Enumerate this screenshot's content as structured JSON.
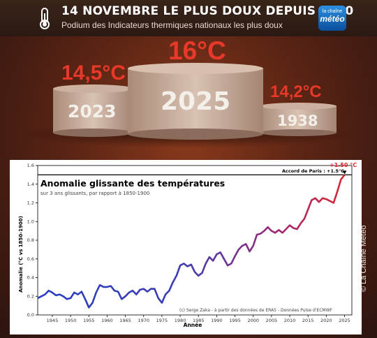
{
  "header": {
    "title": "14 NOVEMBRE LE PLUS DOUX DEPUIS 1930",
    "subtitle": "Podium des Indicateurs thermiques nationaux les plus doux",
    "logo_top": "la chaîne",
    "logo_main": "météo"
  },
  "podium": {
    "first": {
      "value": "16°C",
      "year": "2025"
    },
    "second": {
      "value": "14,5°C",
      "year": "2023"
    },
    "third": {
      "value": "14,2°C",
      "year": "1938"
    }
  },
  "copyright": "© La Chaîne Météo",
  "colors": {
    "accent": "#e8382a",
    "series_start": "#2a3fbf",
    "series_end": "#e0262a"
  },
  "chart_data": {
    "type": "line",
    "title": "Anomalie glissante des températures",
    "subtitle": "sur 3 ans glissants, par rapport à 1850-1900",
    "xlabel": "Année",
    "ylabel": "Anomalie (°C vs 1850-1900)",
    "xlim": [
      1941,
      2027
    ],
    "ylim": [
      0,
      1.6
    ],
    "x_ticks": [
      1945,
      1950,
      1955,
      1960,
      1965,
      1970,
      1975,
      1980,
      1985,
      1990,
      1995,
      2000,
      2005,
      2010,
      2015,
      2020,
      2025
    ],
    "y_ticks": [
      0.0,
      0.2,
      0.4,
      0.6,
      0.8,
      1.0,
      1.2,
      1.4,
      1.6
    ],
    "grid": false,
    "reference_line": {
      "y": 1.5,
      "label": "Accord de Paris : +1.5°C"
    },
    "annotation": "+1.50 °C",
    "credit": "(c) Serge Zaka - à partir des données de ERA5 - Données Pulse d'ECMWF",
    "series": [
      {
        "x": [
          1941,
          1942,
          1943,
          1944,
          1945,
          1946,
          1947,
          1948,
          1949,
          1950,
          1951,
          1952,
          1953,
          1954,
          1955,
          1956,
          1957,
          1958,
          1959,
          1960,
          1961,
          1962,
          1963,
          1964,
          1965,
          1966,
          1967,
          1968,
          1969,
          1970,
          1971,
          1972,
          1973,
          1974,
          1975,
          1976,
          1977,
          1978,
          1979,
          1980,
          1981,
          1982,
          1983,
          1984,
          1985,
          1986,
          1987,
          1988,
          1989,
          1990,
          1991,
          1992,
          1993,
          1994,
          1995,
          1996,
          1997,
          1998,
          1999,
          2000,
          2001,
          2002,
          2003,
          2004,
          2005,
          2006,
          2007,
          2008,
          2009,
          2010,
          2011,
          2012,
          2013,
          2014,
          2015,
          2016,
          2017,
          2018,
          2019,
          2020,
          2021,
          2022,
          2023,
          2024,
          2025
        ],
        "y": [
          0.18,
          0.2,
          0.22,
          0.26,
          0.24,
          0.21,
          0.22,
          0.2,
          0.17,
          0.18,
          0.24,
          0.22,
          0.25,
          0.17,
          0.08,
          0.13,
          0.24,
          0.32,
          0.3,
          0.3,
          0.31,
          0.26,
          0.25,
          0.17,
          0.2,
          0.24,
          0.26,
          0.22,
          0.27,
          0.28,
          0.25,
          0.28,
          0.28,
          0.18,
          0.13,
          0.22,
          0.26,
          0.35,
          0.42,
          0.53,
          0.55,
          0.52,
          0.54,
          0.46,
          0.42,
          0.45,
          0.55,
          0.62,
          0.58,
          0.65,
          0.67,
          0.6,
          0.53,
          0.55,
          0.63,
          0.7,
          0.74,
          0.76,
          0.68,
          0.74,
          0.86,
          0.87,
          0.9,
          0.94,
          0.9,
          0.88,
          0.91,
          0.88,
          0.92,
          0.96,
          0.93,
          0.92,
          0.98,
          1.03,
          1.13,
          1.23,
          1.25,
          1.21,
          1.25,
          1.24,
          1.22,
          1.2,
          1.32,
          1.45,
          1.5
        ]
      }
    ]
  }
}
